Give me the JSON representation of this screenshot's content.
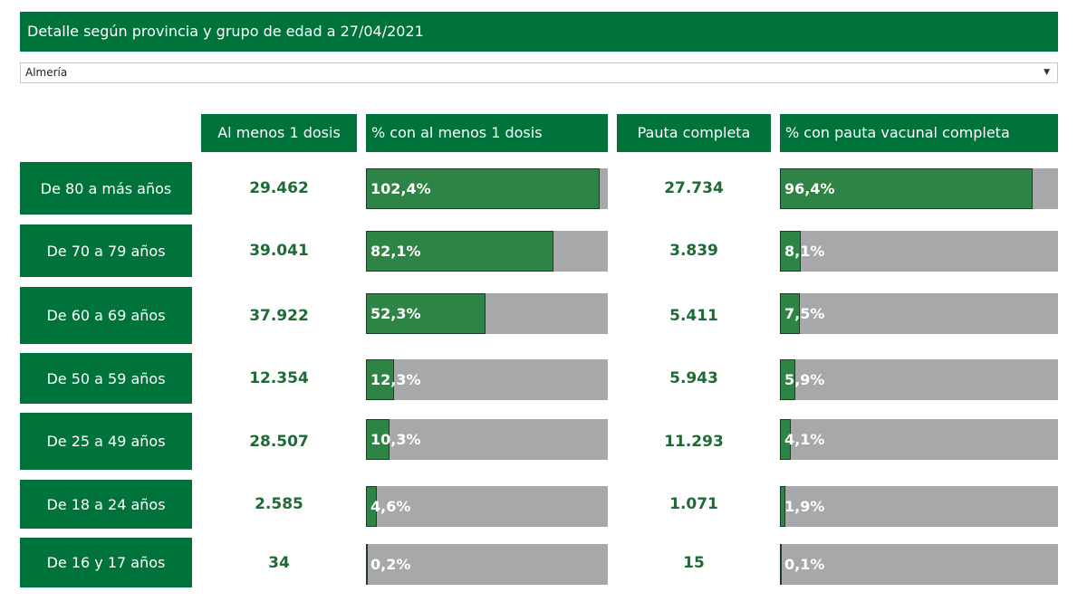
{
  "title": "Detalle según provincia y grupo de edad a 27/04/2021",
  "filter": {
    "selected": "Almería"
  },
  "chart_data": {
    "type": "table",
    "columns": [
      "Al menos 1 dosis",
      "% con al menos 1 dosis",
      "Pauta completa",
      "% con pauta vacunal completa"
    ],
    "rows": [
      {
        "label": "De 80 a más años",
        "dosis1": "29.462",
        "pct1": 102.4,
        "pct1_text": "102,4%",
        "completa": "27.734",
        "pct2": 96.4,
        "pct2_text": "96,4%"
      },
      {
        "label": "De 70 a 79 años",
        "dosis1": "39.041",
        "pct1": 82.1,
        "pct1_text": "82,1%",
        "completa": "3.839",
        "pct2": 8.1,
        "pct2_text": "8,1%"
      },
      {
        "label": "De 60 a 69 años",
        "dosis1": "37.922",
        "pct1": 52.3,
        "pct1_text": "52,3%",
        "completa": "5.411",
        "pct2": 7.5,
        "pct2_text": "7,5%"
      },
      {
        "label": "De 50 a 59 años",
        "dosis1": "12.354",
        "pct1": 12.3,
        "pct1_text": "12,3%",
        "completa": "5.943",
        "pct2": 5.9,
        "pct2_text": "5,9%"
      },
      {
        "label": "De 25 a 49 años",
        "dosis1": "28.507",
        "pct1": 10.3,
        "pct1_text": "10,3%",
        "completa": "11.293",
        "pct2": 4.1,
        "pct2_text": "4,1%"
      },
      {
        "label": "De 18 a 24 años",
        "dosis1": "2.585",
        "pct1": 4.6,
        "pct1_text": "4,6%",
        "completa": "1.071",
        "pct2": 1.9,
        "pct2_text": "1,9%"
      },
      {
        "label": "De 16 y 17 años",
        "dosis1": "34",
        "pct1": 0.2,
        "pct1_text": "0,2%",
        "completa": "15",
        "pct2": 0.1,
        "pct2_text": "0,1%"
      }
    ],
    "colors": {
      "header": "#00733a",
      "bar": "#2e8444",
      "track": "#a6a8a9",
      "value": "#1e6b35"
    }
  }
}
